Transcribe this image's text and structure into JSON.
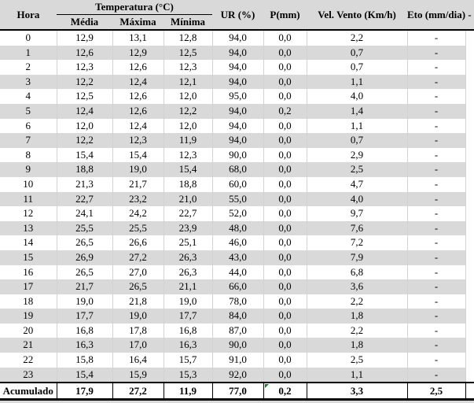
{
  "table": {
    "header": {
      "hora": "Hora",
      "temperatura_group": "Temperatura (°C)",
      "temp_sub": [
        "Média",
        "Máxima",
        "Mínima"
      ],
      "ur": "UR (%)",
      "p": "P(mm)",
      "vel_vento": "Vel. Vento (Km/h)",
      "eto": "Eto (mm/dia)",
      "extra": "-"
    },
    "rows": [
      [
        "0",
        "12,9",
        "13,1",
        "12,8",
        "94,0",
        "0,0",
        "2,2",
        "-"
      ],
      [
        "1",
        "12,6",
        "12,9",
        "12,5",
        "94,0",
        "0,0",
        "0,7",
        "-"
      ],
      [
        "2",
        "12,3",
        "12,6",
        "12,3",
        "94,0",
        "0,0",
        "0,7",
        "-"
      ],
      [
        "3",
        "12,2",
        "12,4",
        "12,1",
        "94,0",
        "0,0",
        "1,1",
        "-"
      ],
      [
        "4",
        "12,5",
        "12,6",
        "12,0",
        "95,0",
        "0,0",
        "4,0",
        "-"
      ],
      [
        "5",
        "12,4",
        "12,6",
        "12,2",
        "94,0",
        "0,2",
        "1,4",
        "-"
      ],
      [
        "6",
        "12,0",
        "12,4",
        "12,0",
        "94,0",
        "0,0",
        "1,1",
        "-"
      ],
      [
        "7",
        "12,2",
        "12,3",
        "11,9",
        "94,0",
        "0,0",
        "0,7",
        "-"
      ],
      [
        "8",
        "15,4",
        "15,4",
        "12,3",
        "90,0",
        "0,0",
        "2,9",
        "-"
      ],
      [
        "9",
        "18,8",
        "19,0",
        "15,4",
        "68,0",
        "0,0",
        "2,5",
        "-"
      ],
      [
        "10",
        "21,3",
        "21,7",
        "18,8",
        "60,0",
        "0,0",
        "4,7",
        "-"
      ],
      [
        "11",
        "22,7",
        "23,2",
        "21,0",
        "55,0",
        "0,0",
        "4,0",
        "-"
      ],
      [
        "12",
        "24,1",
        "24,2",
        "22,7",
        "52,0",
        "0,0",
        "9,7",
        "-"
      ],
      [
        "13",
        "25,5",
        "25,5",
        "23,9",
        "48,0",
        "0,0",
        "7,6",
        "-"
      ],
      [
        "14",
        "26,5",
        "26,6",
        "25,1",
        "46,0",
        "0,0",
        "7,2",
        "-"
      ],
      [
        "15",
        "26,9",
        "27,2",
        "26,3",
        "43,0",
        "0,0",
        "7,9",
        "-"
      ],
      [
        "16",
        "26,5",
        "27,0",
        "26,3",
        "44,0",
        "0,0",
        "6,8",
        "-"
      ],
      [
        "17",
        "21,7",
        "26,5",
        "21,1",
        "66,0",
        "0,0",
        "3,6",
        "-"
      ],
      [
        "18",
        "19,0",
        "21,8",
        "19,0",
        "78,0",
        "0,0",
        "2,2",
        "-"
      ],
      [
        "19",
        "17,7",
        "19,0",
        "17,7",
        "84,0",
        "0,0",
        "1,8",
        "-"
      ],
      [
        "20",
        "16,8",
        "17,8",
        "16,8",
        "87,0",
        "0,0",
        "2,2",
        "-"
      ],
      [
        "21",
        "16,3",
        "17,0",
        "16,3",
        "90,0",
        "0,0",
        "1,8",
        "-"
      ],
      [
        "22",
        "15,8",
        "16,4",
        "15,7",
        "91,0",
        "0,0",
        "2,5",
        "-"
      ],
      [
        "23",
        "15,4",
        "15,9",
        "15,3",
        "92,0",
        "0,0",
        "1,1",
        "-"
      ]
    ],
    "footer": {
      "label": "Acumulado",
      "values": [
        "17,9",
        "27,2",
        "11,9",
        "77,0",
        "0,2",
        "3,3",
        "2,5"
      ]
    }
  },
  "icons": {
    "error_indicator": "excel-green-corner-triangle"
  },
  "colors": {
    "page_bg": "#d9d9d9",
    "header_bg": "#d9d9d9",
    "stripe": "#d9d9d9",
    "grid": "#d2d2d2",
    "border": "#000000",
    "text": "#000000",
    "marker_green": "#1e7d1e"
  }
}
